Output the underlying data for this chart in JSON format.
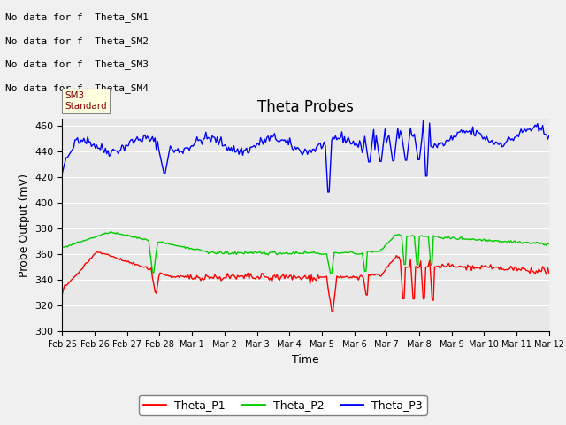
{
  "title": "Theta Probes",
  "xlabel": "Time",
  "ylabel": "Probe Output (mV)",
  "ylim": [
    300,
    465
  ],
  "yticks": [
    300,
    320,
    340,
    360,
    380,
    400,
    420,
    440,
    460
  ],
  "xtick_labels": [
    "Feb 25",
    "Feb 26",
    "Feb 27",
    "Feb 28",
    "Mar 1",
    "Mar 2",
    "Mar 3",
    "Mar 4",
    "Mar 5",
    "Mar 6",
    "Mar 7",
    "Mar 8",
    "Mar 9",
    "Mar 10",
    "Mar 11",
    "Mar 12"
  ],
  "bg_color": "#e8e8e8",
  "grid_color": "#ffffff",
  "fig_bg_color": "#f0f0f0",
  "annotations": [
    "No data for f  Theta_SM1",
    "No data for f  Theta_SM2",
    "No data for f  Theta_SM3",
    "No data for f  Theta_SM4"
  ],
  "tooltip_text": "SM3\nStandard",
  "legend_entries": [
    "Theta_P1",
    "Theta_P2",
    "Theta_P3"
  ],
  "legend_colors": [
    "#ff0000",
    "#00cc00",
    "#0000ff"
  ],
  "line_width": 1.0,
  "title_fontsize": 12,
  "ann_fontsize": 8,
  "tick_fontsize": 7,
  "ylabel_fontsize": 9,
  "xlabel_fontsize": 9
}
